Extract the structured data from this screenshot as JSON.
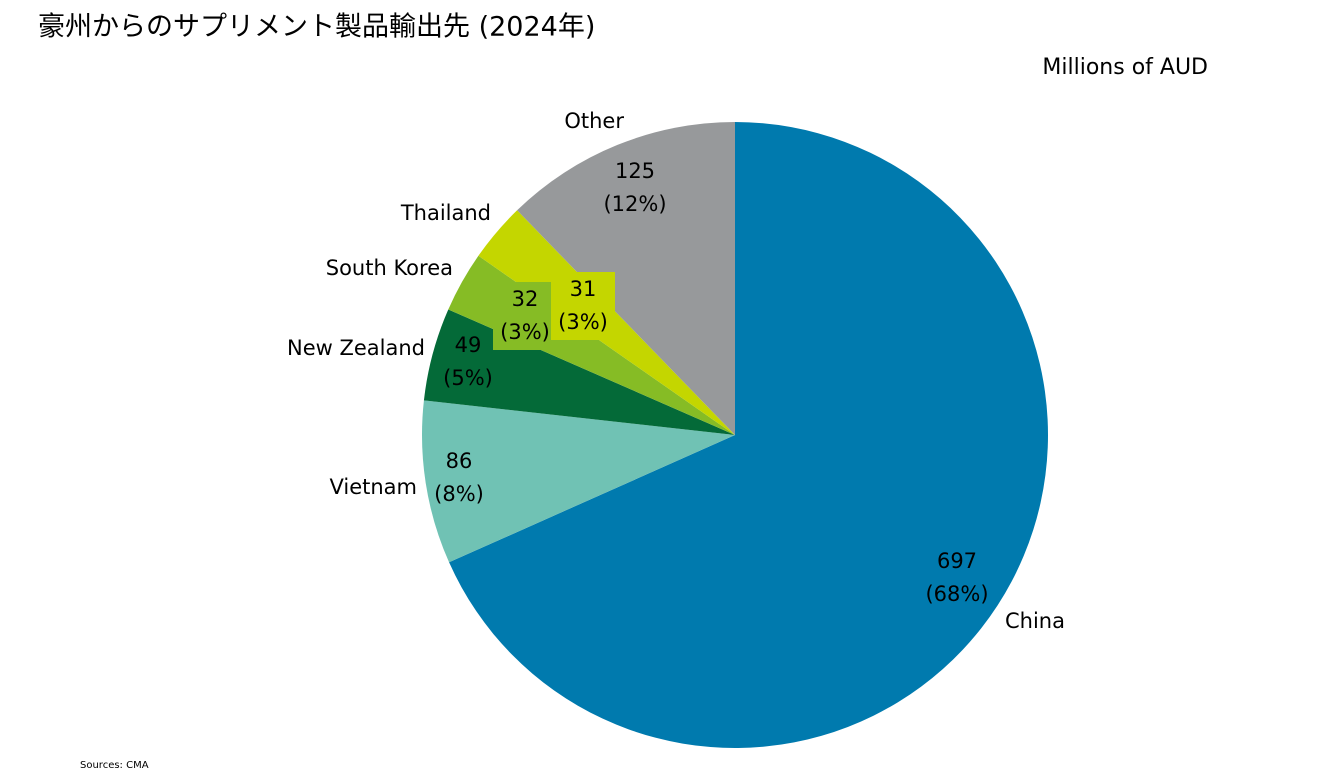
{
  "chart_data": {
    "type": "pie",
    "title": "豪州からのサプリメント製品輸出先 (2024年)",
    "subtitle": "Millions of AUD",
    "source": "Sources:  CMA",
    "categories": [
      "China",
      "Vietnam",
      "New Zealand",
      "South Korea",
      "Thailand",
      "Other"
    ],
    "values": [
      697,
      86,
      49,
      32,
      31,
      125
    ],
    "shares": [
      68,
      8,
      5,
      3,
      3,
      12
    ],
    "share_labels": [
      "(68%)",
      "(8%)",
      "(5%)",
      "(3%)",
      "(3%)",
      "(12%)"
    ],
    "colors": [
      "#007aae",
      "#70c2b4",
      "#046a38",
      "#86bc25",
      "#c4d600",
      "#97999b"
    ]
  }
}
